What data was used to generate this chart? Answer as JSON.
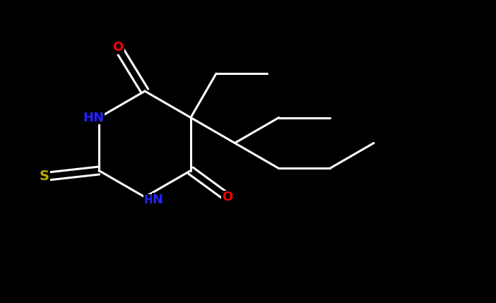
{
  "bg_color": "#000000",
  "bond_color_white": "#ffffff",
  "lw": 2.2,
  "atom_colors": {
    "O": "#ff0000",
    "N": "#2222ff",
    "S": "#bbaa00",
    "C": "#ffffff"
  },
  "font_size": 13,
  "fig_width": 7.02,
  "fig_height": 4.29,
  "dpi": 100,
  "xlim": [
    0.0,
    7.02
  ],
  "ylim": [
    0.0,
    4.29
  ]
}
